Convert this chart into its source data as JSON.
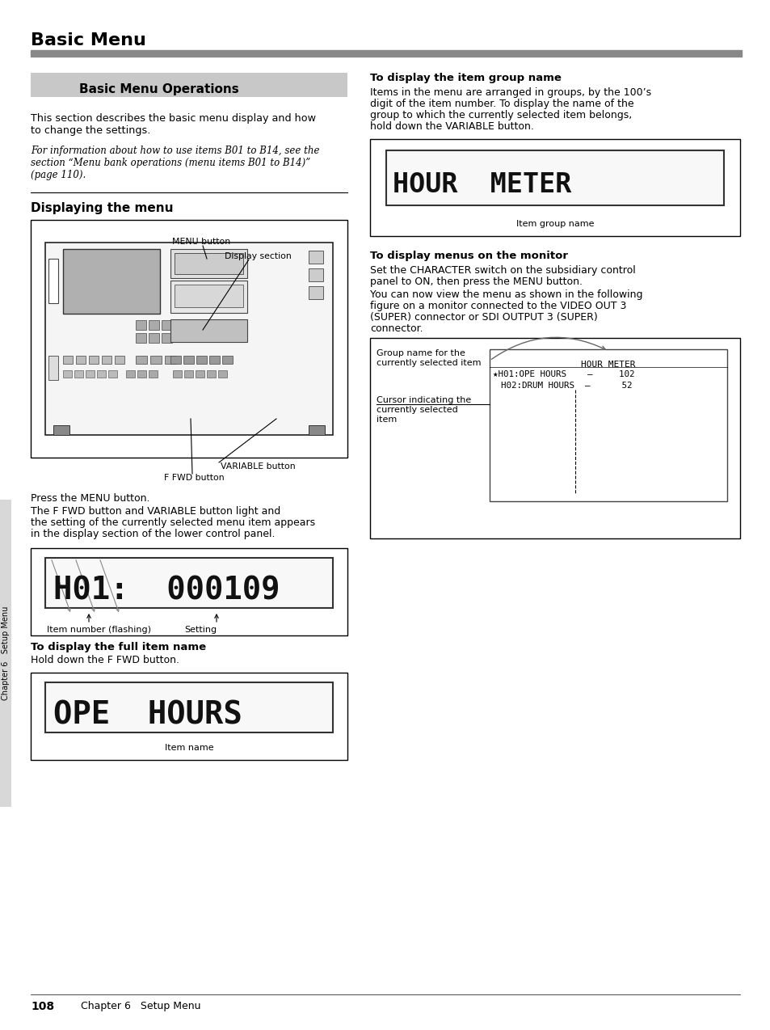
{
  "page_title": "Basic Menu",
  "section_title": "Basic Menu Operations",
  "section_title_bg": "#c8c8c8",
  "body_text_1": "This section describes the basic menu display and how\nto change the settings.",
  "italic_text": "For information about how to use items B01 to B14, see the\nsection “Menu bank operations (menu items B01 to B14)”\n(page 110).",
  "subsection_title": "Displaying the menu",
  "press_text_1": "Press the MENU button.",
  "press_text_2": "The F FWD button and VARIABLE button light and",
  "press_text_3": "the setting of the currently selected menu item appears",
  "press_text_4": "in the display section of the lower control panel.",
  "item_number_label": "Item number (flashing)",
  "setting_label": "Setting",
  "full_item_title": "To display the full item name",
  "full_item_text": "Hold down the F FWD button.",
  "item_name_label": "Item name",
  "group_title": "To display the item group name",
  "group_text_1": "Items in the menu are arranged in groups, by the 100’s",
  "group_text_2": "digit of the item number. To display the name of the",
  "group_text_3": "group to which the currently selected item belongs,",
  "group_text_4": "hold down the VARIABLE button.",
  "item_group_name_label": "Item group name",
  "monitor_title": "To display menus on the monitor",
  "monitor_text_1": "Set the CHARACTER switch on the subsidiary control",
  "monitor_text_2": "panel to ON, then press the MENU button.",
  "monitor_text_3": "You can now view the menu as shown in the following",
  "monitor_text_4": "figure on a monitor connected to the VIDEO OUT 3",
  "monitor_text_5": "(SUPER) connector or SDI OUTPUT 3 (SUPER)",
  "monitor_text_6": "connector.",
  "monitor_group_label_1": "Group name for the",
  "monitor_group_label_2": "currently selected item",
  "monitor_cursor_label_1": "Cursor indicating the",
  "monitor_cursor_label_2": "currently selected",
  "monitor_cursor_label_3": "item",
  "menu_button_label": "MENU button",
  "display_section_label": "Display section",
  "variable_button_label": "VARIABLE button",
  "ffwd_button_label": "F FWD button",
  "page_num": "108",
  "chapter_text": "Chapter 6   Setup Menu",
  "bg_color": "#ffffff",
  "title_bar_color": "#808080",
  "lcd_bg": "#ffffff",
  "lcd_border": "#000000"
}
